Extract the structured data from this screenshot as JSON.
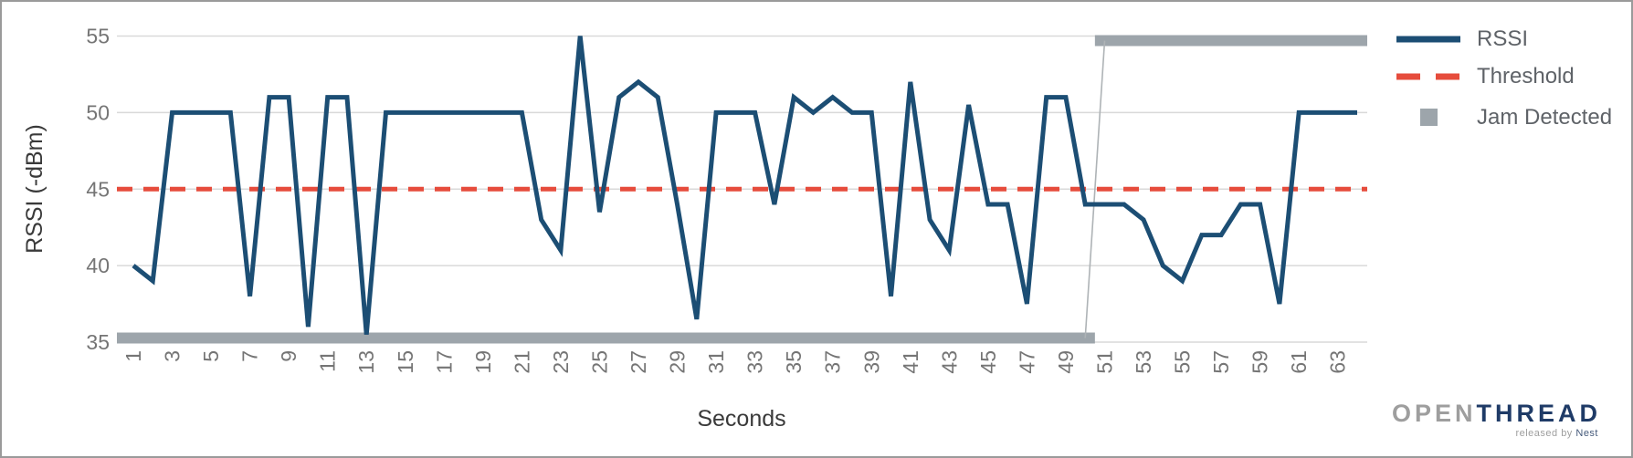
{
  "chart_data": {
    "type": "line",
    "title": "",
    "xlabel": "Seconds",
    "ylabel": "RSSI (-dBm)",
    "ylim": [
      35,
      55
    ],
    "yticks": [
      35,
      40,
      45,
      50,
      55
    ],
    "xticks": [
      1,
      3,
      5,
      7,
      9,
      11,
      13,
      15,
      17,
      19,
      21,
      23,
      25,
      27,
      29,
      31,
      33,
      35,
      37,
      39,
      41,
      43,
      45,
      47,
      49,
      51,
      53,
      55,
      57,
      59,
      61,
      63
    ],
    "grid": true,
    "legend_position": "right",
    "x": [
      1,
      2,
      3,
      4,
      5,
      6,
      7,
      8,
      9,
      10,
      11,
      12,
      13,
      14,
      15,
      16,
      17,
      18,
      19,
      20,
      21,
      22,
      23,
      24,
      25,
      26,
      27,
      28,
      29,
      30,
      31,
      32,
      33,
      34,
      35,
      36,
      37,
      38,
      39,
      40,
      41,
      42,
      43,
      44,
      45,
      46,
      47,
      48,
      49,
      50,
      51,
      52,
      53,
      54,
      55,
      56,
      57,
      58,
      59,
      60,
      61,
      62,
      63,
      64
    ],
    "series": [
      {
        "name": "RSSI",
        "style": "solid",
        "values": [
          40,
          39,
          50,
          50,
          50,
          50,
          38,
          51,
          51,
          36,
          51,
          51,
          35.5,
          50,
          50,
          50,
          50,
          50,
          50,
          50,
          50,
          43,
          41,
          55,
          43.5,
          51,
          52,
          51,
          44,
          36.5,
          50,
          50,
          50,
          44,
          51,
          50,
          51,
          50,
          50,
          38,
          52,
          43,
          41,
          50.5,
          44,
          44,
          37.5,
          51,
          51,
          44,
          44,
          44,
          43,
          40,
          39,
          42,
          42,
          44,
          44,
          37.5,
          50,
          50,
          50,
          50
        ]
      },
      {
        "name": "Threshold",
        "style": "dashed",
        "type": "constant",
        "value": 45
      },
      {
        "name": "Jam Detected",
        "style": "thick-step",
        "off_value": 35,
        "on_value": 54.7,
        "off_seconds": [
          1,
          50
        ],
        "on_seconds": [
          51,
          64
        ]
      }
    ]
  },
  "axes": {
    "x_title": "Seconds",
    "y_title": "RSSI (-dBm)"
  },
  "legend": {
    "items": [
      {
        "label": "RSSI",
        "swatch": "line"
      },
      {
        "label": "Threshold",
        "swatch": "dashed-line"
      },
      {
        "label": "Jam Detected",
        "swatch": "square"
      }
    ]
  },
  "logo": {
    "part1": "OPEN",
    "part2": "THREAD",
    "tagline_prefix": "released by ",
    "tagline_brand": "Nest"
  },
  "colors": {
    "rssi": "#1c4e74",
    "threshold": "#e64c3c",
    "jam": "#9da5ab",
    "jam_connector": "#aeb3b6",
    "grid": "#d9d9d9",
    "tick_label": "#757575",
    "axis_title": "#3a3a3a",
    "legend_label": "#5f6368",
    "logo_open": "#9e9e9e",
    "logo_thread": "#1f3b67",
    "card_border": "#9a9a9a"
  }
}
